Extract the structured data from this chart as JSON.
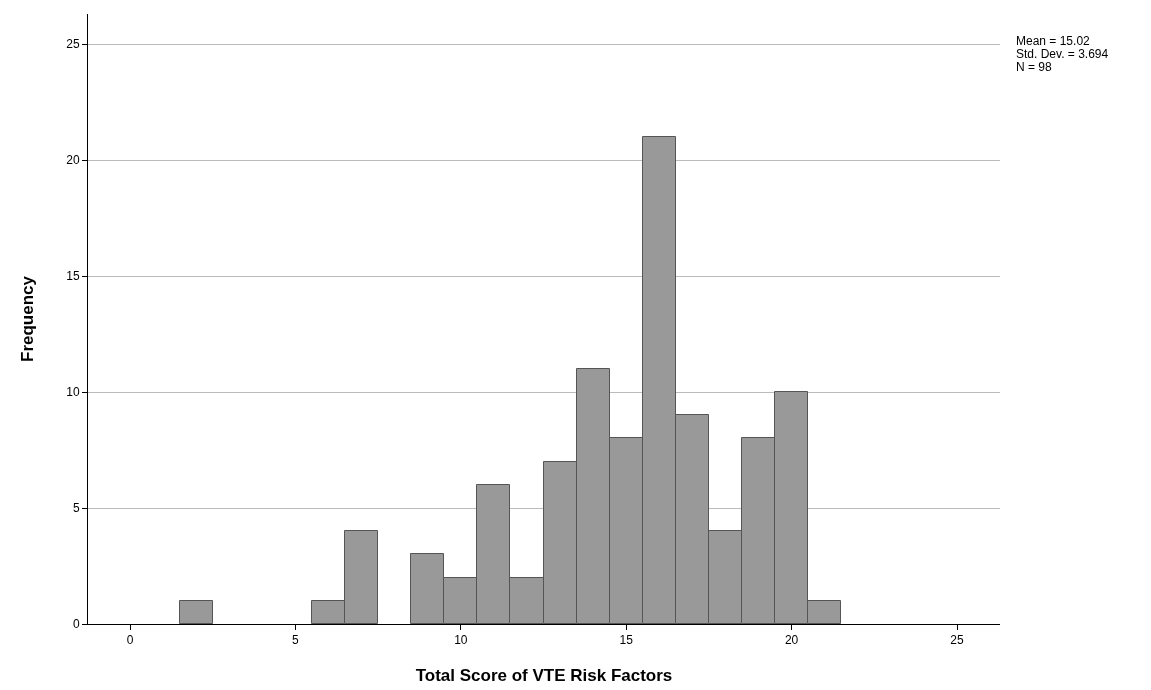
{
  "chart_data": {
    "type": "histogram",
    "xlabel": "Total Score of VTE Risk Factors",
    "ylabel": "Frequency",
    "bins": [
      1.5,
      2.5,
      3.5,
      4.5,
      5.5,
      6.5,
      7.5,
      8.5,
      9.5,
      10.5,
      11.5,
      12.5,
      13.5,
      14.5,
      15.5,
      16.5,
      17.5,
      18.5,
      19.5,
      20.5,
      21.5
    ],
    "values": [
      1,
      0,
      0,
      0,
      1,
      4,
      0,
      3,
      2,
      6,
      2,
      7,
      11,
      8,
      21,
      9,
      4,
      8,
      10,
      1
    ],
    "color": "#999999",
    "xlim": [
      -1.27,
      26.3
    ],
    "xticks": [
      0,
      5,
      10,
      15,
      20,
      25
    ],
    "ylim": [
      0,
      26.3
    ],
    "yticks": [
      0,
      5,
      10,
      15,
      20,
      25
    ],
    "grid": "y",
    "annotations": [
      "Mean = 15.02",
      "Std. Dev. = 3.694",
      "N = 98"
    ]
  }
}
